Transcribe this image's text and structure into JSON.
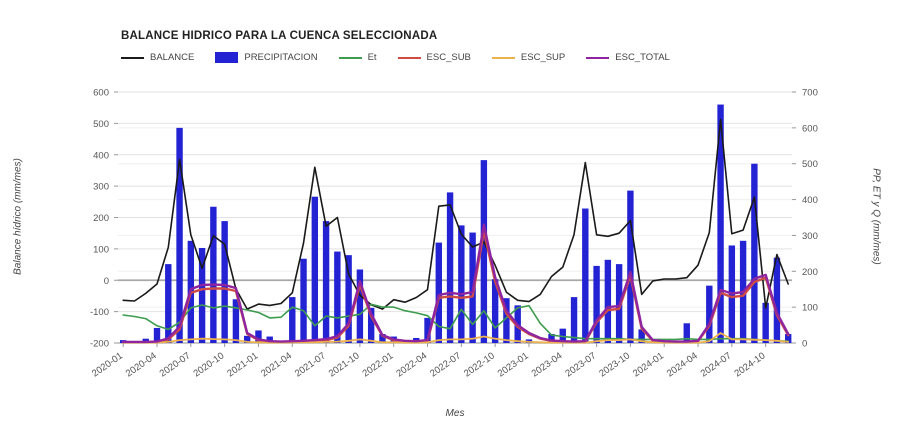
{
  "chart": {
    "title": "BALANCE HIDRICO PARA LA CUENCA SELECCIONADA",
    "x_axis_title": "Mes",
    "y_left_title": "Balance hídrico (mm/mes)",
    "y_right_title": "PP, ET y Q (mm/mes)"
  },
  "chart_data": {
    "type": "bar+line",
    "x": [
      "2020-01",
      "2020-02",
      "2020-03",
      "2020-04",
      "2020-05",
      "2020-06",
      "2020-07",
      "2020-08",
      "2020-09",
      "2020-10",
      "2020-11",
      "2020-12",
      "2021-01",
      "2021-02",
      "2021-03",
      "2021-04",
      "2021-05",
      "2021-06",
      "2021-07",
      "2021-08",
      "2021-09",
      "2021-10",
      "2021-11",
      "2021-12",
      "2022-01",
      "2022-02",
      "2022-03",
      "2022-04",
      "2022-05",
      "2022-06",
      "2022-07",
      "2022-08",
      "2022-09",
      "2022-10",
      "2022-11",
      "2022-12",
      "2023-01",
      "2023-02",
      "2023-03",
      "2023-04",
      "2023-05",
      "2023-06",
      "2023-07",
      "2023-08",
      "2023-09",
      "2023-10",
      "2023-11",
      "2023-12",
      "2024-01",
      "2024-02",
      "2024-03",
      "2024-04",
      "2024-05",
      "2024-06",
      "2024-07",
      "2024-08",
      "2024-09",
      "2024-10",
      "2024-11",
      "2024-12"
    ],
    "x_tick_labels": [
      "2020-01",
      "2020-04",
      "2020-07",
      "2020-10",
      "2021-01",
      "2021-04",
      "2021-07",
      "2021-10",
      "2022-01",
      "2022-04",
      "2022-07",
      "2022-10",
      "2023-01",
      "2023-04",
      "2023-07",
      "2023-10",
      "2024-01",
      "2024-04",
      "2024-07",
      "2024-10"
    ],
    "y_left": {
      "min": -200,
      "max": 600,
      "ticks": [
        600,
        500,
        400,
        300,
        200,
        100,
        0,
        -100,
        -200
      ]
    },
    "y_right": {
      "min": 0,
      "max": 700,
      "ticks": [
        700,
        600,
        500,
        400,
        300,
        200,
        100,
        0
      ]
    },
    "legend_position": "top-left",
    "grid": true,
    "series": [
      {
        "name": "BALANCE",
        "type": "line",
        "axis": "left",
        "color": "#1a1a1a",
        "width": 1.6,
        "values": [
          -64,
          -66,
          -42,
          -12,
          105,
          385,
          145,
          38,
          142,
          115,
          -28,
          -92,
          -76,
          -80,
          -74,
          -40,
          118,
          360,
          172,
          200,
          20,
          -48,
          -78,
          -92,
          -62,
          -70,
          -55,
          -30,
          236,
          240,
          147,
          106,
          122,
          48,
          -38,
          -64,
          -68,
          -45,
          12,
          42,
          145,
          375,
          145,
          140,
          150,
          190,
          -45,
          -2,
          4,
          4,
          8,
          48,
          152,
          512,
          148,
          160,
          265,
          -88,
          82,
          -12
        ]
      },
      {
        "name": "PRECIPITACION",
        "type": "bar",
        "axis": "right",
        "color": "#2323d4",
        "values": [
          8,
          0,
          12,
          42,
          220,
          600,
          285,
          265,
          380,
          340,
          122,
          20,
          35,
          18,
          4,
          128,
          235,
          408,
          340,
          255,
          245,
          205,
          98,
          25,
          18,
          8,
          14,
          70,
          280,
          420,
          328,
          308,
          510,
          178,
          125,
          105,
          10,
          0,
          25,
          40,
          128,
          375,
          215,
          232,
          220,
          425,
          38,
          5,
          0,
          0,
          55,
          0,
          160,
          665,
          272,
          285,
          500,
          112,
          238,
          25
        ]
      },
      {
        "name": "Et",
        "type": "line",
        "axis": "right",
        "color": "#3d9c4e",
        "width": 1.6,
        "values": [
          78,
          74,
          68,
          48,
          38,
          58,
          98,
          106,
          98,
          103,
          98,
          92,
          85,
          70,
          72,
          100,
          90,
          48,
          75,
          70,
          75,
          80,
          108,
          100,
          100,
          90,
          84,
          76,
          46,
          40,
          94,
          52,
          90,
          42,
          70,
          98,
          104,
          55,
          22,
          18,
          15,
          12,
          12,
          12,
          12,
          10,
          10,
          10,
          10,
          10,
          12,
          10,
          10,
          12,
          12,
          12,
          10,
          8,
          6,
          5
        ]
      },
      {
        "name": "ESC_SUB",
        "type": "line",
        "axis": "right",
        "color": "#d14b45",
        "width": 2.4,
        "values": [
          2,
          2,
          2,
          3,
          10,
          38,
          140,
          150,
          152,
          152,
          145,
          25,
          8,
          4,
          3,
          3,
          4,
          6,
          8,
          15,
          48,
          162,
          75,
          20,
          8,
          5,
          4,
          6,
          126,
          130,
          126,
          130,
          312,
          172,
          82,
          45,
          25,
          12,
          6,
          4,
          3,
          4,
          58,
          92,
          95,
          188,
          40,
          6,
          4,
          3,
          3,
          5,
          48,
          140,
          128,
          132,
          170,
          182,
          78,
          22
        ]
      },
      {
        "name": "ESC_SUP",
        "type": "line",
        "axis": "right",
        "color": "#edb24e",
        "width": 1.8,
        "values": [
          1,
          1,
          1,
          1,
          3,
          8,
          10,
          12,
          11,
          10,
          8,
          3,
          2,
          1,
          1,
          2,
          2,
          2,
          3,
          4,
          6,
          10,
          6,
          2,
          2,
          1,
          1,
          2,
          8,
          10,
          10,
          12,
          18,
          12,
          8,
          5,
          3,
          2,
          1,
          1,
          1,
          1,
          5,
          8,
          8,
          10,
          5,
          2,
          1,
          1,
          1,
          1,
          5,
          28,
          10,
          10,
          9,
          8,
          6,
          3
        ]
      },
      {
        "name": "ESC_TOTAL",
        "type": "line",
        "axis": "right",
        "color": "#8e24a0",
        "width": 2.4,
        "values": [
          3,
          3,
          3,
          4,
          13,
          46,
          150,
          162,
          163,
          162,
          153,
          28,
          10,
          5,
          4,
          5,
          6,
          8,
          11,
          19,
          54,
          172,
          81,
          22,
          10,
          6,
          5,
          8,
          134,
          140,
          136,
          142,
          330,
          184,
          90,
          50,
          28,
          14,
          7,
          5,
          4,
          5,
          63,
          100,
          103,
          198,
          45,
          8,
          5,
          4,
          4,
          6,
          53,
          148,
          138,
          142,
          179,
          190,
          84,
          25
        ]
      }
    ]
  }
}
